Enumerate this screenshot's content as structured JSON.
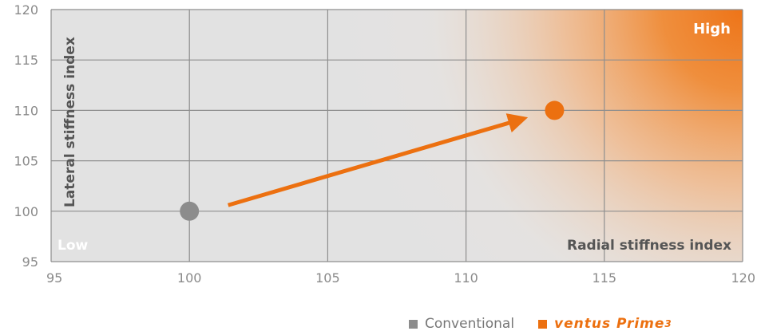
{
  "chart_data": {
    "type": "scatter",
    "xlabel": "Radial stiffness index",
    "ylabel": "Lateral stiffness index",
    "xlim": [
      95,
      120
    ],
    "ylim": [
      95,
      120
    ],
    "x_ticks": [
      "95",
      "100",
      "105",
      "110",
      "115",
      "120"
    ],
    "y_ticks": [
      "95",
      "100",
      "105",
      "110",
      "115",
      "120"
    ],
    "grid": true,
    "corner_labels": {
      "low": "Low",
      "high": "High"
    },
    "series": [
      {
        "name": "Conventional",
        "color": "#8c8c8c",
        "x": [
          100
        ],
        "y": [
          100
        ]
      },
      {
        "name": "ventus Prime",
        "name_sup": "3",
        "color": "#ec7010",
        "x": [
          113.2
        ],
        "y": [
          110
        ]
      }
    ],
    "annotations": [
      {
        "type": "arrow",
        "from": [
          101.4,
          100.6
        ],
        "to": [
          112.1,
          109.2
        ],
        "color": "#ec7010"
      }
    ],
    "legend_position": "bottom-right",
    "gradient": {
      "from": "#ffffff",
      "to": "#ef7a1e",
      "direction": "towards top-right"
    }
  }
}
